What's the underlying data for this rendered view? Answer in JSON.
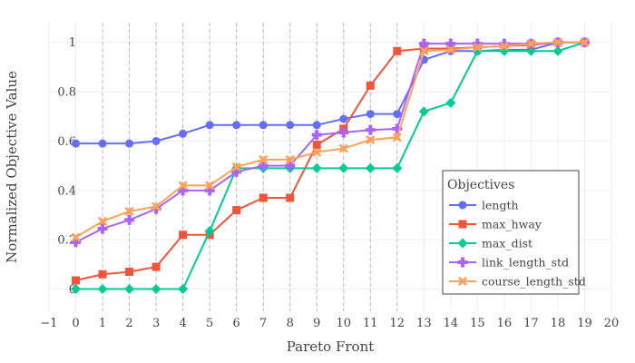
{
  "chart_data": {
    "type": "line",
    "title": "",
    "xlabel": "Pareto Front",
    "ylabel": "Normalized Objective Value",
    "xlim": [
      -1,
      20
    ],
    "ylim": [
      -0.09,
      1.08
    ],
    "x_ticks": [
      -1,
      0,
      1,
      2,
      3,
      4,
      5,
      6,
      7,
      8,
      9,
      10,
      11,
      12,
      13,
      14,
      15,
      16,
      17,
      18,
      19,
      20
    ],
    "y_ticks": [
      0,
      0.2,
      0.4,
      0.6,
      0.8,
      1
    ],
    "y_tick_labels": [
      "0",
      "0.2",
      "0.4",
      "0.6",
      "0.8",
      "1"
    ],
    "grid": true,
    "vertical_dashed_lines_at": [
      1,
      2,
      3,
      4,
      5,
      6,
      7,
      8,
      9,
      10,
      11,
      12
    ],
    "x": [
      0,
      1,
      2,
      3,
      4,
      5,
      6,
      7,
      8,
      9,
      10,
      11,
      12,
      13,
      14,
      15,
      16,
      17,
      18,
      19
    ],
    "legend": {
      "title": "Objectives",
      "placement": "bottom-right"
    },
    "series": [
      {
        "name": "length",
        "color": "#636efa",
        "marker": "circle",
        "values": [
          0.59,
          0.59,
          0.59,
          0.6,
          0.63,
          0.665,
          0.665,
          0.665,
          0.665,
          0.665,
          0.69,
          0.71,
          0.71,
          0.93,
          0.965,
          0.965,
          0.97,
          0.97,
          1.0,
          1.0
        ]
      },
      {
        "name": "max_hway",
        "color": "#ef553b",
        "marker": "square",
        "values": [
          0.035,
          0.06,
          0.07,
          0.09,
          0.22,
          0.22,
          0.32,
          0.37,
          0.37,
          0.585,
          0.65,
          0.825,
          0.965,
          0.975,
          0.975,
          0.98,
          0.985,
          0.99,
          1.0,
          1.0
        ]
      },
      {
        "name": "max_dist",
        "color": "#00cc96",
        "marker": "diamond",
        "values": [
          0.0,
          0.0,
          0.0,
          0.0,
          0.0,
          0.235,
          0.49,
          0.49,
          0.49,
          0.49,
          0.49,
          0.49,
          0.49,
          0.72,
          0.755,
          0.965,
          0.965,
          0.965,
          0.965,
          1.0
        ]
      },
      {
        "name": "link_length_std",
        "color": "#ab63fa",
        "marker": "cross",
        "values": [
          0.19,
          0.245,
          0.28,
          0.325,
          0.4,
          0.4,
          0.475,
          0.5,
          0.5,
          0.625,
          0.635,
          0.645,
          0.65,
          0.995,
          0.995,
          0.995,
          0.995,
          0.995,
          1.0,
          1.0
        ]
      },
      {
        "name": "course_length_std",
        "color": "#ffa15a",
        "marker": "x",
        "values": [
          0.21,
          0.275,
          0.315,
          0.335,
          0.42,
          0.42,
          0.495,
          0.525,
          0.525,
          0.555,
          0.57,
          0.605,
          0.615,
          0.965,
          0.97,
          0.98,
          0.985,
          0.995,
          1.0,
          1.0
        ]
      }
    ]
  }
}
